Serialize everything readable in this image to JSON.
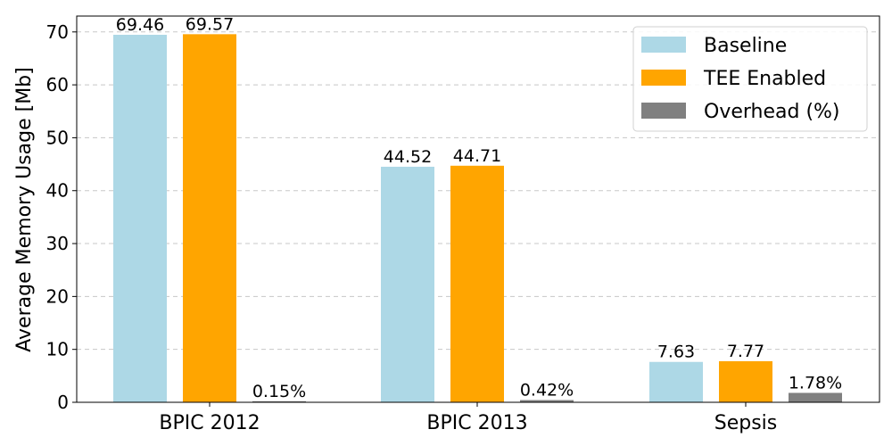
{
  "chart_data": {
    "type": "bar",
    "categories": [
      "BPIC 2012",
      "BPIC 2013",
      "Sepsis"
    ],
    "series": [
      {
        "name": "Baseline",
        "values": [
          69.46,
          44.52,
          7.63
        ],
        "labels": [
          "69.46",
          "44.52",
          "7.63"
        ],
        "color": "#add8e6"
      },
      {
        "name": "TEE Enabled",
        "values": [
          69.57,
          44.71,
          7.77
        ],
        "labels": [
          "69.57",
          "44.71",
          "7.77"
        ],
        "color": "#ffa500"
      },
      {
        "name": "Overhead (%)",
        "values": [
          0.15,
          0.42,
          1.78
        ],
        "labels": [
          "0.15%",
          "0.42%",
          "1.78%"
        ],
        "color": "#808080"
      }
    ],
    "ylabel": "Average Memory Usage [Mb]",
    "ylim": [
      0,
      73
    ],
    "yticks": [
      0,
      10,
      20,
      30,
      40,
      50,
      60,
      70
    ],
    "grid": "y-dashed",
    "legend_position": "top-right"
  }
}
